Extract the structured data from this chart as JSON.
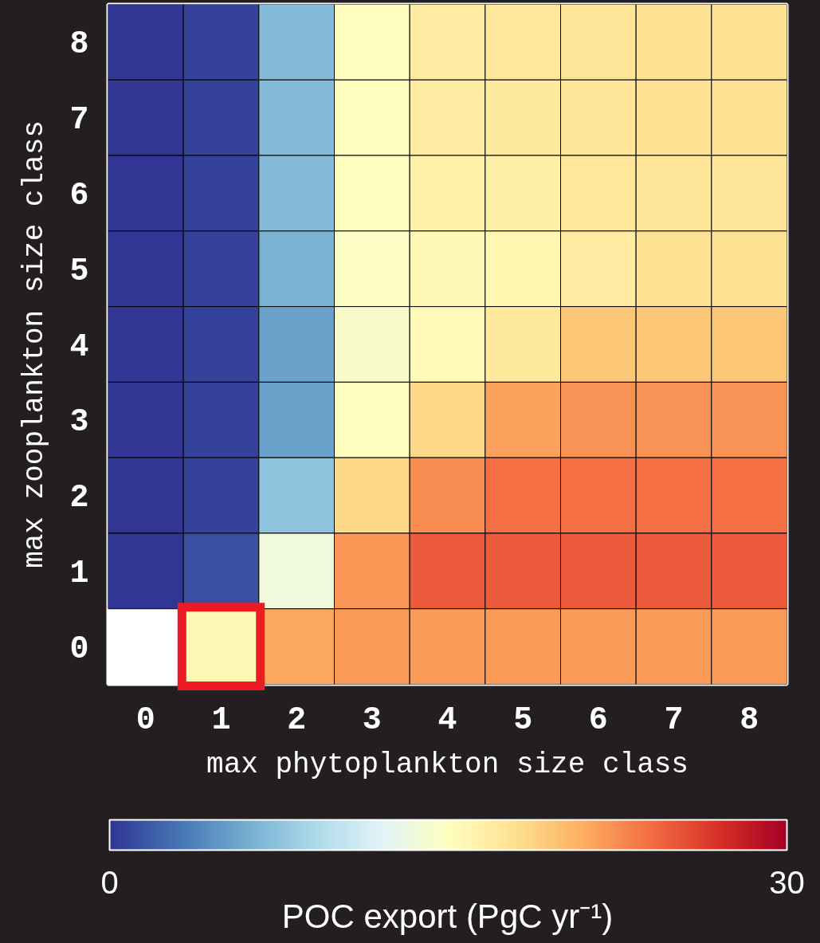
{
  "chart_data": {
    "type": "heatmap",
    "xlabel": "max phytoplankton size class",
    "ylabel": "max zooplankton size class",
    "categories": [
      "0",
      "1",
      "2",
      "3",
      "4",
      "5",
      "6",
      "7",
      "8"
    ],
    "y_categories": [
      "8",
      "7",
      "6",
      "5",
      "4",
      "3",
      "2",
      "1",
      "0"
    ],
    "cells": [
      [
        0,
        0.7,
        7.0,
        15.0,
        16.9,
        17.3,
        17.6,
        17.8,
        17.8
      ],
      [
        0,
        0.7,
        7.0,
        15.0,
        16.9,
        17.1,
        17.5,
        17.7,
        17.7
      ],
      [
        0,
        0.7,
        7.0,
        15.0,
        16.5,
        16.6,
        17.3,
        17.5,
        17.5
      ],
      [
        0,
        0.7,
        6.4,
        14.7,
        15.6,
        15.9,
        16.9,
        17.8,
        17.8
      ],
      [
        0,
        0.7,
        5.4,
        14.3,
        15.5,
        17.2,
        19.5,
        19.5,
        19.5
      ],
      [
        0,
        0.7,
        5.4,
        15.1,
        18.5,
        21.5,
        22.2,
        22.2,
        22.2
      ],
      [
        0,
        0.7,
        7.6,
        18.5,
        22.5,
        23.9,
        23.9,
        23.9,
        23.9
      ],
      [
        0,
        1.2,
        13.5,
        22.1,
        24.9,
        24.9,
        24.9,
        24.9,
        24.9
      ],
      [
        null,
        15.7,
        21.3,
        21.8,
        21.8,
        21.8,
        21.8,
        21.8,
        21.8
      ]
    ],
    "clim": [
      0,
      30
    ],
    "cticks": [
      0,
      30
    ],
    "clabel": "POC export (PgC yr⁻¹)"
  }
}
